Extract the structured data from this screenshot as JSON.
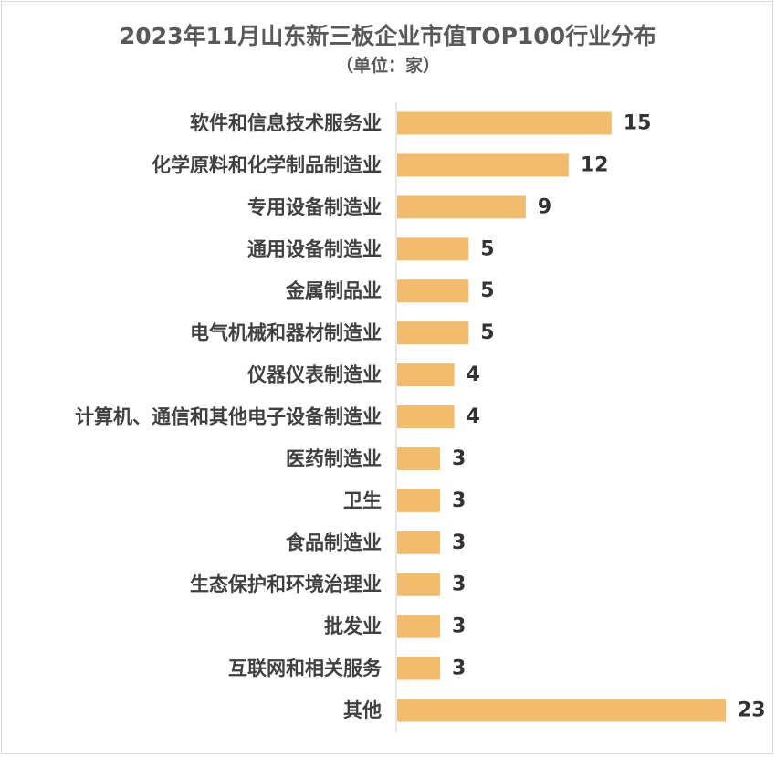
{
  "header": {
    "title": "2023年11月山东新三板企业市值TOP100行业分布",
    "subtitle": "（单位：家）"
  },
  "colors": {
    "bar": "#f2bc6f",
    "axis": "#d0d0d0"
  },
  "chart_data": {
    "type": "bar",
    "orientation": "horizontal",
    "title": "2023年11月山东新三板企业市值TOP100行业分布",
    "subtitle": "（单位：家）",
    "categories": [
      "软件和信息技术服务业",
      "化学原料和化学制品制造业",
      "专用设备制造业",
      "通用设备制造业",
      "金属制品业",
      "电气机械和器材制造业",
      "仪器仪表制造业",
      "计算机、通信和其他电子设备制造业",
      "医药制造业",
      "卫生",
      "食品制造业",
      "生态保护和环境治理业",
      "批发业",
      "互联网和相关服务",
      "其他"
    ],
    "values": [
      15,
      12,
      9,
      5,
      5,
      5,
      4,
      4,
      3,
      3,
      3,
      3,
      3,
      3,
      23
    ],
    "xlim": [
      0,
      23
    ],
    "grid": false,
    "legend": "none",
    "data_labels": true
  }
}
